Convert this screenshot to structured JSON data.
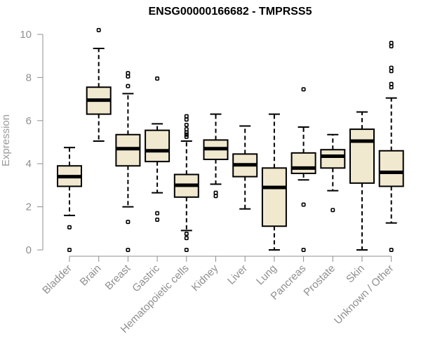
{
  "chart_data": {
    "type": "boxplot",
    "title": "ENSG00000166682 - TMPRSS5",
    "ylabel": "Expression",
    "xlabel": "",
    "ylim": [
      0,
      10
    ],
    "yticks": [
      "0",
      "2",
      "4",
      "6",
      "8",
      "10"
    ],
    "box_fill": "#f0e8cf",
    "categories": [
      "Bladder",
      "Brain",
      "Breast",
      "Gastric",
      "Hematopoietic cells",
      "Kidney",
      "Liver",
      "Lung",
      "Pancreas",
      "Prostate",
      "Skin",
      "Unknown / Other"
    ],
    "boxes": [
      {
        "min": 1.6,
        "q1": 2.95,
        "median": 3.4,
        "q3": 3.9,
        "max": 4.75,
        "outliers": [
          1.05,
          0.0
        ]
      },
      {
        "min": 5.05,
        "q1": 6.3,
        "median": 6.95,
        "q3": 7.55,
        "max": 9.35,
        "outliers": [
          10.2
        ]
      },
      {
        "min": 2.0,
        "q1": 3.9,
        "median": 4.7,
        "q3": 5.35,
        "max": 7.25,
        "outliers": [
          8.2,
          8.05,
          7.6,
          1.3,
          0.0
        ]
      },
      {
        "min": 2.65,
        "q1": 4.1,
        "median": 4.6,
        "q3": 5.55,
        "max": 5.85,
        "outliers": [
          7.95,
          1.7,
          1.4
        ]
      },
      {
        "min": 0.9,
        "q1": 2.45,
        "median": 3.0,
        "q3": 3.5,
        "max": 5.05,
        "outliers": [
          6.2,
          6.05,
          5.8,
          5.6,
          5.45,
          5.35,
          5.25,
          0.75,
          0.55,
          0.0
        ]
      },
      {
        "min": 3.05,
        "q1": 4.2,
        "median": 4.7,
        "q3": 5.1,
        "max": 6.3,
        "outliers": [
          2.65,
          2.5
        ]
      },
      {
        "min": 1.9,
        "q1": 3.4,
        "median": 3.95,
        "q3": 4.45,
        "max": 5.75,
        "outliers": []
      },
      {
        "min": 0.0,
        "q1": 1.1,
        "median": 2.9,
        "q3": 3.8,
        "max": 6.3,
        "outliers": []
      },
      {
        "min": 3.25,
        "q1": 3.55,
        "median": 3.8,
        "q3": 4.5,
        "max": 5.7,
        "outliers": [
          7.45,
          2.1,
          0.0
        ]
      },
      {
        "min": 2.75,
        "q1": 3.8,
        "median": 4.35,
        "q3": 4.65,
        "max": 5.35,
        "outliers": [
          1.85
        ]
      },
      {
        "min": 0.0,
        "q1": 3.1,
        "median": 5.05,
        "q3": 5.6,
        "max": 6.4,
        "outliers": []
      },
      {
        "min": 1.25,
        "q1": 2.95,
        "median": 3.6,
        "q3": 4.6,
        "max": 7.05,
        "outliers": [
          9.6,
          9.45,
          8.45,
          8.3,
          7.7,
          7.55,
          0.0
        ]
      }
    ]
  }
}
